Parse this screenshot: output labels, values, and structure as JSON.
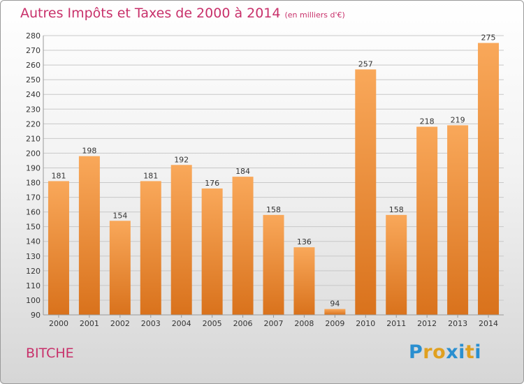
{
  "title": "Autres Impôts et Taxes de 2000 à 2014",
  "unit": "(en milliers d'€)",
  "commune": "BITCHE",
  "logo": {
    "letters": [
      "P",
      "r",
      "o",
      "x",
      "i",
      "t",
      "i"
    ],
    "colors": [
      "#2a8fd0",
      "#e0a020",
      "#e0a020",
      "#2a8fd0",
      "#2a8fd0",
      "#e0a020",
      "#2a8fd0"
    ]
  },
  "colors": {
    "bar_top": "#f9a85a",
    "bar_bottom": "#d9721c",
    "text": "#333333",
    "grid": "#c8c8c8"
  },
  "chart_data": {
    "type": "bar",
    "categories": [
      "2000",
      "2001",
      "2002",
      "2003",
      "2004",
      "2005",
      "2006",
      "2007",
      "2008",
      "2009",
      "2010",
      "2011",
      "2012",
      "2013",
      "2014"
    ],
    "values": [
      181,
      198,
      154,
      181,
      192,
      176,
      184,
      158,
      136,
      94,
      257,
      158,
      218,
      219,
      275
    ],
    "data_labels": [
      "181",
      "198",
      "154",
      "181",
      "192",
      "176",
      "184",
      "158",
      "136",
      "94",
      "257",
      "158",
      "218",
      "219",
      "275"
    ],
    "ylim": [
      90,
      280
    ],
    "yticks": [
      "90",
      "100",
      "110",
      "120",
      "130",
      "140",
      "150",
      "160",
      "170",
      "180",
      "190",
      "200",
      "210",
      "220",
      "230",
      "240",
      "250",
      "260",
      "270",
      "280"
    ],
    "grid": true,
    "xlabel": "",
    "ylabel": ""
  }
}
